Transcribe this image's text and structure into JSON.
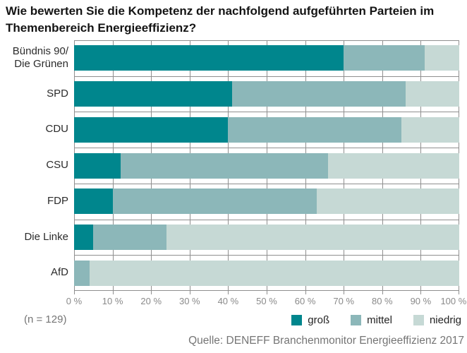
{
  "title": "Wie bewerten Sie die Kompetenz der nachfolgend aufgeführten Parteien im\nThemenbereich Energieeffizienz?",
  "footnote": "(n = 129)",
  "source": "Quelle: DENEFF Branchenmonitor Energieeffizienz 2017",
  "colors": {
    "gross": "#00868D",
    "mittel": "#8CB7B9",
    "niedrig": "#C6D9D5",
    "grid": "#8f8f8f"
  },
  "chart_data": {
    "type": "bar",
    "orientation": "horizontal",
    "stacked": true,
    "grid": true,
    "xlim": [
      0,
      100
    ],
    "x_ticks": [
      "0 %",
      "10 %",
      "20 %",
      "30 %",
      "40 %",
      "50 %",
      "60 %",
      "70 %",
      "80 %",
      "90 %",
      "100 %"
    ],
    "categories": [
      "Bündnis 90/\nDie Grünen",
      "SPD",
      "CDU",
      "CSU",
      "FDP",
      "Die Linke",
      "AfD"
    ],
    "series": [
      {
        "name": "groß",
        "color": "#00868D",
        "values": [
          70,
          41,
          40,
          12,
          10,
          5,
          0
        ]
      },
      {
        "name": "mittel",
        "color": "#8CB7B9",
        "values": [
          21,
          45,
          45,
          54,
          53,
          19,
          4
        ]
      },
      {
        "name": "niedrig",
        "color": "#C6D9D5",
        "values": [
          9,
          14,
          15,
          34,
          37,
          76,
          96
        ]
      }
    ],
    "legend_position": "bottom-right"
  }
}
